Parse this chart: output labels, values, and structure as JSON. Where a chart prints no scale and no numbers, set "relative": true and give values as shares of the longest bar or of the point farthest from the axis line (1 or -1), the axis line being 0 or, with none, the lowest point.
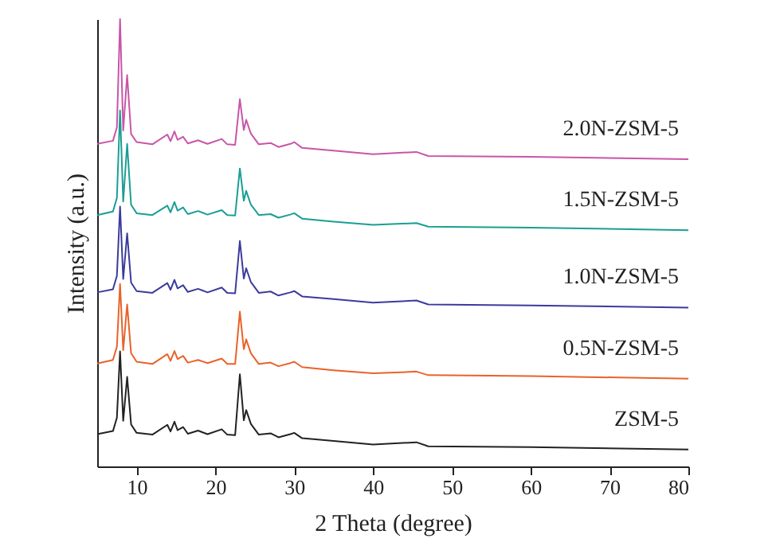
{
  "chart_data": {
    "type": "line",
    "xlabel": "2 Theta (degree)",
    "ylabel": "Intensity (a.u.)",
    "relative": true,
    "legend": false,
    "grid": false,
    "marker": "none",
    "line_style": "solid",
    "x": [
      5,
      7,
      7.5,
      7.9,
      8.3,
      8.8,
      9.3,
      10,
      12,
      13.9,
      14.3,
      14.8,
      15.2,
      15.9,
      16.5,
      17.8,
      19,
      20.8,
      21.5,
      22.5,
      23.1,
      23.6,
      23.9,
      24.5,
      25.5,
      27,
      28,
      29.5,
      30,
      31,
      35,
      40,
      45.5,
      47,
      60,
      80
    ],
    "xlim": [
      5,
      80
    ],
    "xticks": [
      10,
      20,
      30,
      40,
      50,
      60,
      70,
      80
    ],
    "series": [
      {
        "name": "ZSM-5",
        "color": "#222222",
        "values": [
          0.072,
          0.079,
          0.109,
          0.257,
          0.102,
          0.2,
          0.094,
          0.075,
          0.071,
          0.093,
          0.078,
          0.1,
          0.081,
          0.088,
          0.073,
          0.08,
          0.072,
          0.083,
          0.071,
          0.07,
          0.206,
          0.103,
          0.126,
          0.095,
          0.071,
          0.074,
          0.065,
          0.072,
          0.075,
          0.063,
          0.057,
          0.049,
          0.054,
          0.045,
          0.043,
          0.038
        ]
      },
      {
        "name": "0.5N-ZSM-5",
        "color": "#e8632a",
        "values": [
          0.23,
          0.238,
          0.268,
          0.408,
          0.26,
          0.362,
          0.253,
          0.234,
          0.229,
          0.251,
          0.236,
          0.258,
          0.24,
          0.247,
          0.232,
          0.238,
          0.231,
          0.241,
          0.229,
          0.229,
          0.346,
          0.262,
          0.284,
          0.253,
          0.229,
          0.232,
          0.224,
          0.231,
          0.234,
          0.222,
          0.215,
          0.208,
          0.212,
          0.204,
          0.202,
          0.196
        ]
      },
      {
        "name": "1.0N-ZSM-5",
        "color": "#3b3b9c",
        "values": [
          0.389,
          0.396,
          0.426,
          0.581,
          0.419,
          0.521,
          0.411,
          0.392,
          0.388,
          0.41,
          0.395,
          0.417,
          0.398,
          0.405,
          0.39,
          0.397,
          0.389,
          0.4,
          0.388,
          0.387,
          0.504,
          0.42,
          0.443,
          0.412,
          0.388,
          0.391,
          0.382,
          0.389,
          0.392,
          0.38,
          0.374,
          0.366,
          0.371,
          0.362,
          0.36,
          0.355
        ]
      },
      {
        "name": "1.5N-ZSM-5",
        "color": "#1a9e94",
        "values": [
          0.562,
          0.57,
          0.6,
          0.796,
          0.592,
          0.721,
          0.585,
          0.566,
          0.562,
          0.583,
          0.568,
          0.591,
          0.572,
          0.579,
          0.564,
          0.571,
          0.563,
          0.573,
          0.562,
          0.561,
          0.666,
          0.594,
          0.616,
          0.585,
          0.562,
          0.564,
          0.556,
          0.563,
          0.566,
          0.554,
          0.547,
          0.54,
          0.544,
          0.536,
          0.534,
          0.528
        ]
      },
      {
        "name": "2.0N-ZSM-5",
        "color": "#c855a8",
        "values": [
          0.721,
          0.728,
          0.758,
          1,
          0.751,
          0.875,
          0.743,
          0.725,
          0.72,
          0.742,
          0.727,
          0.749,
          0.73,
          0.737,
          0.722,
          0.729,
          0.721,
          0.732,
          0.72,
          0.719,
          0.821,
          0.752,
          0.775,
          0.744,
          0.72,
          0.723,
          0.714,
          0.721,
          0.725,
          0.712,
          0.706,
          0.698,
          0.703,
          0.694,
          0.692,
          0.687
        ]
      }
    ]
  }
}
